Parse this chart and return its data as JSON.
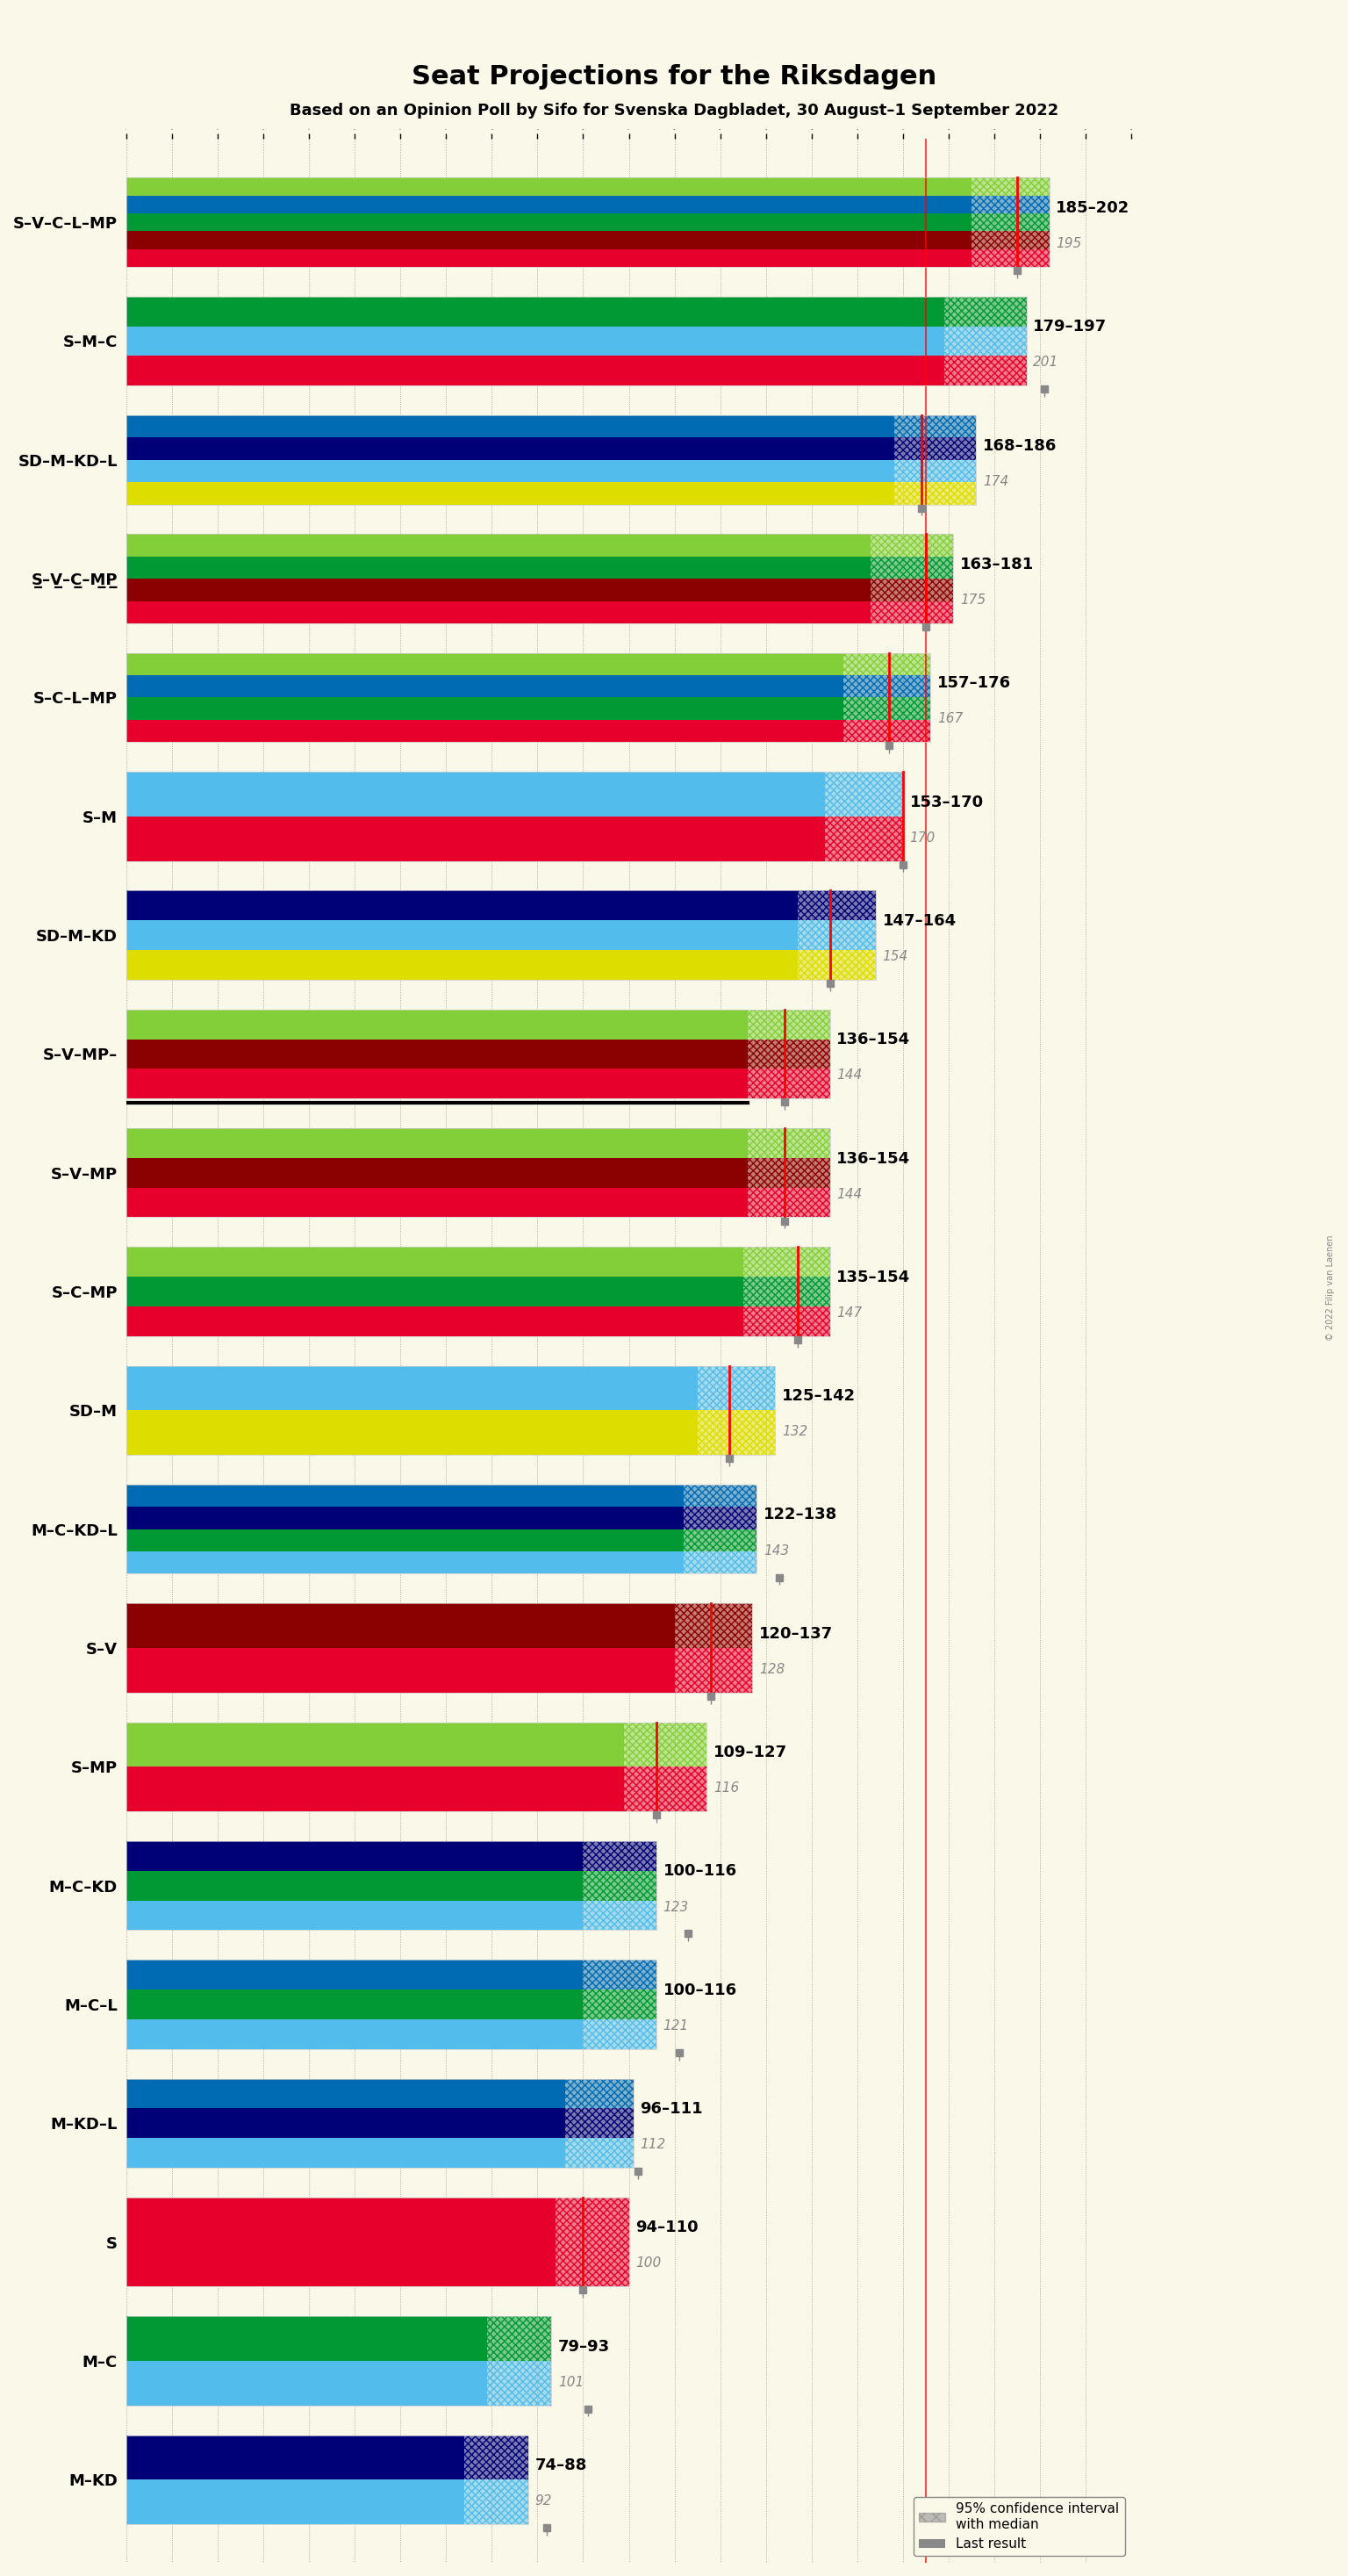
{
  "title": "Seat Projections for the Riksdagen",
  "subtitle": "Based on an Opinion Poll by Sifo for Svenska Dagbladet, 30 August–1 September 2022",
  "background_color": "#faf8e8",
  "coalitions": [
    {
      "label": "S–V–C–L–MP",
      "underline": false,
      "ci_low": 185,
      "ci_high": 202,
      "median": 195,
      "last": 195,
      "colors": [
        "#E8002D",
        "#8B0000",
        "#009933",
        "#006AB3",
        "#83CF39"
      ],
      "n_stripes": 5
    },
    {
      "label": "S–M–C",
      "underline": false,
      "ci_low": 179,
      "ci_high": 197,
      "median": 201,
      "last": 201,
      "colors": [
        "#E8002D",
        "#52BDEC",
        "#009933"
      ],
      "n_stripes": 3
    },
    {
      "label": "SD–M–KD–L",
      "underline": false,
      "ci_low": 168,
      "ci_high": 186,
      "median": 174,
      "last": 174,
      "colors": [
        "#DDDD00",
        "#52BDEC",
        "#000077",
        "#006AB3"
      ],
      "n_stripes": 4
    },
    {
      "label": "S̲–V̲–C̲–M̲P̲",
      "underline": true,
      "ci_low": 163,
      "ci_high": 181,
      "median": 175,
      "last": 175,
      "colors": [
        "#E8002D",
        "#8B0000",
        "#009933",
        "#83CF39"
      ],
      "n_stripes": 4
    },
    {
      "label": "S–C–L–MP",
      "underline": false,
      "ci_low": 157,
      "ci_high": 176,
      "median": 167,
      "last": 167,
      "colors": [
        "#E8002D",
        "#009933",
        "#006AB3",
        "#83CF39"
      ],
      "n_stripes": 4
    },
    {
      "label": "S–M",
      "underline": false,
      "ci_low": 153,
      "ci_high": 170,
      "median": 170,
      "last": 170,
      "colors": [
        "#E8002D",
        "#52BDEC"
      ],
      "n_stripes": 2
    },
    {
      "label": "SD–M–KD",
      "underline": false,
      "ci_low": 147,
      "ci_high": 164,
      "median": 154,
      "last": 154,
      "colors": [
        "#DDDD00",
        "#52BDEC",
        "#000077"
      ],
      "n_stripes": 3
    },
    {
      "label": "S–V–MP–",
      "underline": false,
      "ci_low": 136,
      "ci_high": 154,
      "median": 144,
      "last": 144,
      "colors": [
        "#E8002D",
        "#8B0000",
        "#83CF39"
      ],
      "n_stripes": 3,
      "black_line": true
    },
    {
      "label": "S–V–MP",
      "underline": false,
      "ci_low": 136,
      "ci_high": 154,
      "median": 144,
      "last": 144,
      "colors": [
        "#E8002D",
        "#8B0000",
        "#83CF39"
      ],
      "n_stripes": 3
    },
    {
      "label": "S–C–MP",
      "underline": false,
      "ci_low": 135,
      "ci_high": 154,
      "median": 147,
      "last": 147,
      "colors": [
        "#E8002D",
        "#009933",
        "#83CF39"
      ],
      "n_stripes": 3
    },
    {
      "label": "SD–M",
      "underline": false,
      "ci_low": 125,
      "ci_high": 142,
      "median": 132,
      "last": 132,
      "colors": [
        "#DDDD00",
        "#52BDEC"
      ],
      "n_stripes": 2
    },
    {
      "label": "M–C–KD–L",
      "underline": false,
      "ci_low": 122,
      "ci_high": 138,
      "median": 143,
      "last": 143,
      "colors": [
        "#52BDEC",
        "#009933",
        "#000077",
        "#006AB3"
      ],
      "n_stripes": 4
    },
    {
      "label": "S–V",
      "underline": false,
      "ci_low": 120,
      "ci_high": 137,
      "median": 128,
      "last": 128,
      "colors": [
        "#E8002D",
        "#8B0000"
      ],
      "n_stripes": 2
    },
    {
      "label": "S–MP",
      "underline": false,
      "ci_low": 109,
      "ci_high": 127,
      "median": 116,
      "last": 116,
      "colors": [
        "#E8002D",
        "#83CF39"
      ],
      "n_stripes": 2
    },
    {
      "label": "M–C–KD",
      "underline": false,
      "ci_low": 100,
      "ci_high": 116,
      "median": 123,
      "last": 123,
      "colors": [
        "#52BDEC",
        "#009933",
        "#000077"
      ],
      "n_stripes": 3
    },
    {
      "label": "M–C–L",
      "underline": false,
      "ci_low": 100,
      "ci_high": 116,
      "median": 121,
      "last": 121,
      "colors": [
        "#52BDEC",
        "#009933",
        "#006AB3"
      ],
      "n_stripes": 3
    },
    {
      "label": "M–KD–L",
      "underline": false,
      "ci_low": 96,
      "ci_high": 111,
      "median": 112,
      "last": 112,
      "colors": [
        "#52BDEC",
        "#000077",
        "#006AB3"
      ],
      "n_stripes": 3
    },
    {
      "label": "S",
      "underline": true,
      "ci_low": 94,
      "ci_high": 110,
      "median": 100,
      "last": 100,
      "colors": [
        "#E8002D"
      ],
      "n_stripes": 1
    },
    {
      "label": "M–C",
      "underline": false,
      "ci_low": 79,
      "ci_high": 93,
      "median": 101,
      "last": 101,
      "colors": [
        "#52BDEC",
        "#009933"
      ],
      "n_stripes": 2
    },
    {
      "label": "M–KD",
      "underline": false,
      "ci_low": 74,
      "ci_high": 88,
      "median": 92,
      "last": 92,
      "colors": [
        "#52BDEC",
        "#000077"
      ],
      "n_stripes": 2
    }
  ],
  "xmin": 0,
  "xmax": 220,
  "majority_line": 175,
  "bar_height": 0.75,
  "stripe_colors": {
    "S": "#E8002D",
    "V": "#8B0000",
    "C": "#009933",
    "L": "#006AB3",
    "MP": "#83CF39",
    "M": "#52BDEC",
    "SD": "#DDDD00",
    "KD": "#000077"
  }
}
